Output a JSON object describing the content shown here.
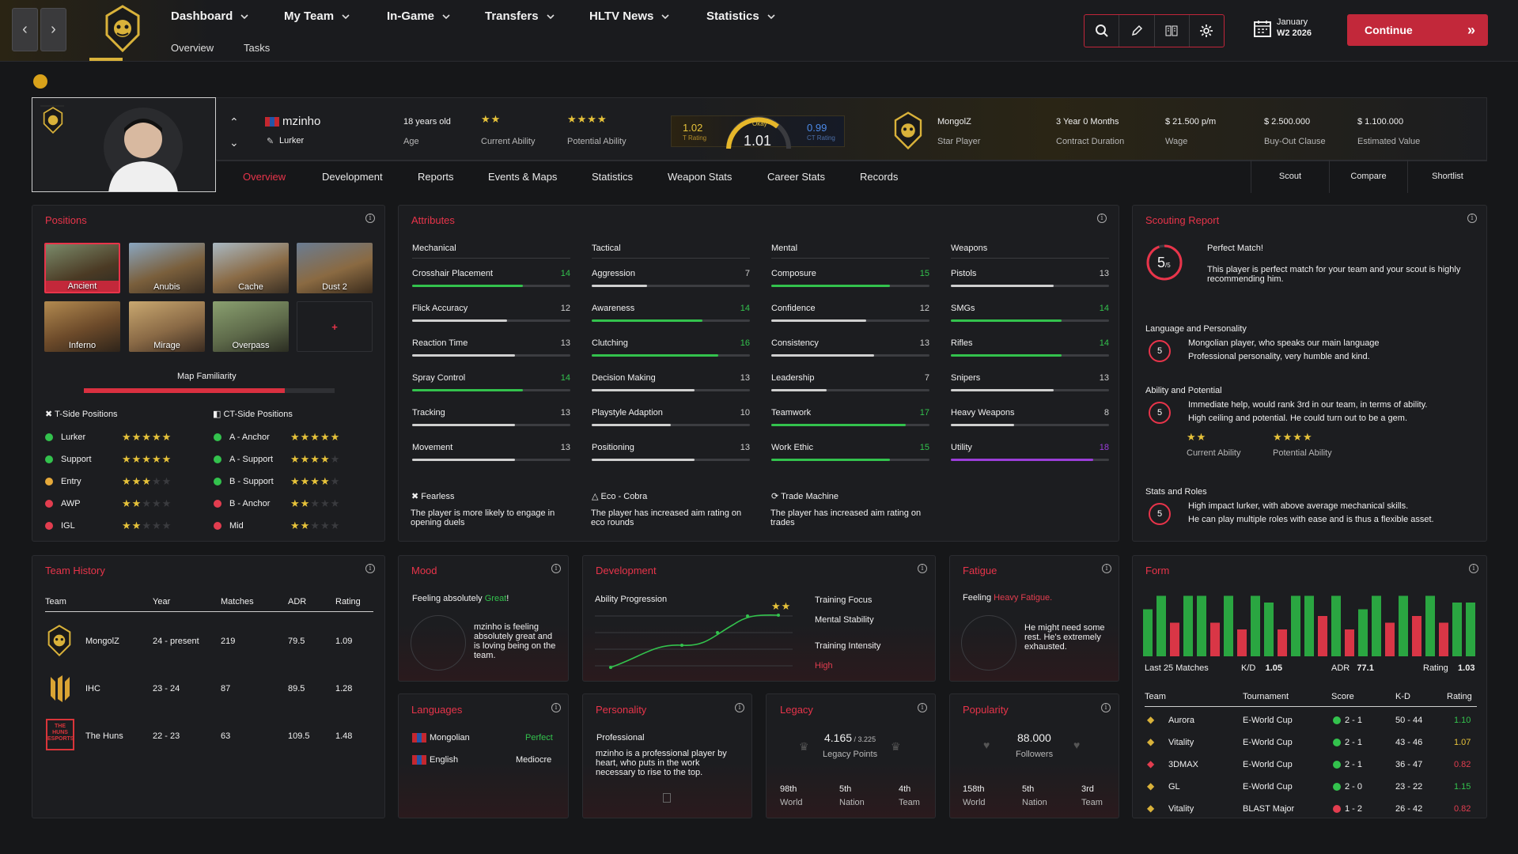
{
  "nav": {
    "menus": [
      "Dashboard",
      "My Team",
      "In-Game",
      "Transfers",
      "HLTV News",
      "Statistics"
    ],
    "submenu": [
      "Overview",
      "Tasks"
    ]
  },
  "date": {
    "month": "January",
    "week": "W2 2026"
  },
  "continue_label": "Continue",
  "player": {
    "name": "mzinho",
    "role": "Lurker",
    "age": "18 years old",
    "age_label": "Age",
    "ca_stars": "★★",
    "ca_label": "Current Ability",
    "pa_stars": "★★★★",
    "pa_label": "Potential Ability",
    "t_rating": "1.02",
    "t_rating_label": "T Rating",
    "rating_state": "Okay",
    "rating": "1.01",
    "ct_rating": "0.99",
    "ct_rating_label": "CT Rating",
    "team": "MongolZ",
    "status": "Star Player",
    "contract": "3 Year 0 Months",
    "contract_label": "Contract Duration",
    "wage": "$ 21.500 p/m",
    "wage_label": "Wage",
    "buyout": "$ 2.500.000",
    "buyout_label": "Buy-Out Clause",
    "value": "$ 1.100.000",
    "value_label": "Estimated Value"
  },
  "tabs": [
    "Overview",
    "Development",
    "Reports",
    "Events & Maps",
    "Statistics",
    "Weapon Stats",
    "Career Stats",
    "Records"
  ],
  "actions": [
    "Scout",
    "Compare",
    "Shortlist"
  ],
  "positions": {
    "title": "Positions",
    "maps": [
      "Ancient",
      "Anubis",
      "Cache",
      "Dust 2",
      "Inferno",
      "Mirage",
      "Overpass"
    ],
    "add": "+",
    "familiarity_label": "Map Familiarity",
    "familiarity": 0.8,
    "t_title": "T-Side Positions",
    "ct_title": "CT-Side Positions",
    "t": [
      {
        "name": "Lurker",
        "stars": 5,
        "color": "#33c24d"
      },
      {
        "name": "Support",
        "stars": 5,
        "color": "#33c24d"
      },
      {
        "name": "Entry",
        "stars": 3,
        "color": "#e6a93a"
      },
      {
        "name": "AWP",
        "stars": 2,
        "color": "#e23d4f"
      },
      {
        "name": "IGL",
        "stars": 2,
        "color": "#e23d4f"
      }
    ],
    "ct": [
      {
        "name": "A - Anchor",
        "stars": 5,
        "color": "#33c24d"
      },
      {
        "name": "A - Support",
        "stars": 4,
        "color": "#33c24d"
      },
      {
        "name": "B - Support",
        "stars": 4,
        "color": "#33c24d"
      },
      {
        "name": "B - Anchor",
        "stars": 2,
        "color": "#e23d4f"
      },
      {
        "name": "Mid",
        "stars": 2,
        "color": "#e23d4f"
      }
    ]
  },
  "attributes": {
    "title": "Attributes",
    "groups": [
      {
        "name": "Mechanical",
        "items": [
          [
            "Crosshair Placement",
            14
          ],
          [
            "Flick Accuracy",
            12
          ],
          [
            "Reaction Time",
            13
          ],
          [
            "Spray Control",
            14
          ],
          [
            "Tracking",
            13
          ],
          [
            "Movement",
            13
          ]
        ]
      },
      {
        "name": "Tactical",
        "items": [
          [
            "Aggression",
            7
          ],
          [
            "Awareness",
            14
          ],
          [
            "Clutching",
            16
          ],
          [
            "Decision Making",
            13
          ],
          [
            "Playstyle Adaption",
            10
          ],
          [
            "Positioning",
            13
          ]
        ]
      },
      {
        "name": "Mental",
        "items": [
          [
            "Composure",
            15
          ],
          [
            "Confidence",
            12
          ],
          [
            "Consistency",
            13
          ],
          [
            "Leadership",
            7
          ],
          [
            "Teamwork",
            17
          ],
          [
            "Work Ethic",
            15
          ]
        ]
      },
      {
        "name": "Weapons",
        "items": [
          [
            "Pistols",
            13
          ],
          [
            "SMGs",
            14
          ],
          [
            "Rifles",
            14
          ],
          [
            "Snipers",
            13
          ],
          [
            "Heavy Weapons",
            8
          ],
          [
            "Utility",
            18
          ]
        ]
      }
    ],
    "traits": [
      {
        "name": "Fearless",
        "desc": "The player is more likely to engage in opening duels"
      },
      {
        "name": "Eco - Cobra",
        "desc": "The player has increased aim rating on eco rounds"
      },
      {
        "name": "Trade Machine",
        "desc": "The player has increased aim rating on trades"
      }
    ]
  },
  "scouting": {
    "title": "Scouting Report",
    "score": "5",
    "of": "/5",
    "match": "Perfect Match!",
    "match_desc": "This player is perfect match for your team and your scout is highly recommending him.",
    "sections": [
      {
        "title": "Language and Personality",
        "score": "5",
        "lines": [
          "Mongolian player, who speaks our main language",
          "Professional personality, very humble and kind."
        ]
      },
      {
        "title": "Ability and Potential",
        "score": "5",
        "lines": [
          "Immediate help, would rank 3rd in our team, in terms of ability.",
          "High ceiling and potential. He could turn out to be a gem."
        ]
      },
      {
        "title": "Stats and Roles",
        "score": "5",
        "lines": [
          "High impact lurker, with above average mechanical skills.",
          "He can play multiple roles with ease and is thus a flexible asset."
        ]
      }
    ],
    "ca_stars": "★★",
    "ca_label": "Current Ability",
    "pa_stars": "★★★★",
    "pa_label": "Potential Ability"
  },
  "history": {
    "title": "Team History",
    "headers": [
      "Team",
      "Year",
      "Matches",
      "ADR",
      "Rating"
    ],
    "rows": [
      [
        "MongolZ",
        "24 - present",
        "219",
        "79.5",
        "1.09"
      ],
      [
        "IHC",
        "23 - 24",
        "87",
        "89.5",
        "1.28"
      ],
      [
        "The Huns",
        "22 - 23",
        "63",
        "109.5",
        "1.48"
      ]
    ],
    "huns_logo": "THE HUNS ESPORTS"
  },
  "mood": {
    "title": "Mood",
    "prefix": "Feeling absolutely ",
    "state": "Great",
    "suffix": "!",
    "desc": "mzinho is feeling absolutely great and is loving being on the team."
  },
  "development": {
    "title": "Development",
    "progression": "Ability Progression",
    "stars": "★★",
    "focus_label": "Training Focus",
    "focus": "Mental Stability",
    "intensity_label": "Training Intensity",
    "intensity": "High"
  },
  "fatigue": {
    "title": "Fatigue",
    "prefix": "Feeling ",
    "state": "Heavy Fatigue.",
    "desc": "He might need some rest. He's extremely exhausted."
  },
  "form": {
    "title": "Form",
    "bars": [
      7,
      9,
      5,
      9,
      9,
      5,
      9,
      4,
      9,
      8,
      4,
      9,
      9,
      6,
      9,
      4,
      7,
      9,
      5,
      9,
      6,
      9,
      5,
      8,
      8
    ],
    "colors": [
      "g",
      "g",
      "r",
      "g",
      "g",
      "r",
      "g",
      "r",
      "g",
      "g",
      "r",
      "g",
      "g",
      "r",
      "g",
      "r",
      "g",
      "g",
      "r",
      "g",
      "r",
      "g",
      "r",
      "g",
      "g"
    ],
    "last": "Last 25 Matches",
    "kd_label": "K/D",
    "kd": "1.05",
    "adr_label": "ADR",
    "adr": "77.1",
    "rating_label": "Rating",
    "rating": "1.03",
    "headers": [
      "Team",
      "Tournament",
      "Score",
      "K-D",
      "Rating"
    ],
    "rows": [
      {
        "team": "Aurora",
        "tournament": "E-World Cup",
        "score": "2 - 1",
        "kd": "50 - 44",
        "rating": "1.10",
        "win": true
      },
      {
        "team": "Vitality",
        "tournament": "E-World Cup",
        "score": "2 - 1",
        "kd": "43 - 46",
        "rating": "1.07",
        "win": true
      },
      {
        "team": "3DMAX",
        "tournament": "E-World Cup",
        "score": "2 - 1",
        "kd": "36 - 47",
        "rating": "0.82",
        "win": true
      },
      {
        "team": "GL",
        "tournament": "E-World Cup",
        "score": "2 - 0",
        "kd": "23 - 22",
        "rating": "1.15",
        "win": true
      },
      {
        "team": "Vitality",
        "tournament": "BLAST Major",
        "score": "1 - 2",
        "kd": "26 - 42",
        "rating": "0.82",
        "win": false
      }
    ]
  },
  "languages": {
    "title": "Languages",
    "items": [
      [
        "Mongolian",
        "Perfect"
      ],
      [
        "English",
        "Mediocre"
      ]
    ]
  },
  "personality": {
    "title": "Personality",
    "type": "Professional",
    "desc": "mzinho is a professional player by heart, who puts in the work necessary to rise to the top."
  },
  "legacy": {
    "title": "Legacy",
    "points": "4.165",
    "max": " / 3.225",
    "label": "Legacy Points",
    "ranks": [
      [
        "98th",
        "World"
      ],
      [
        "5th",
        "Nation"
      ],
      [
        "4th",
        "Team"
      ]
    ]
  },
  "popularity": {
    "title": "Popularity",
    "followers": "88.000",
    "label": "Followers",
    "ranks": [
      [
        "158th",
        "World"
      ],
      [
        "5th",
        "Nation"
      ],
      [
        "3rd",
        "Team"
      ]
    ]
  },
  "colors": {
    "accent": "#e8344a",
    "green": "#33c24d",
    "gold": "#e6c23a",
    "purple": "#9b3ed8"
  }
}
